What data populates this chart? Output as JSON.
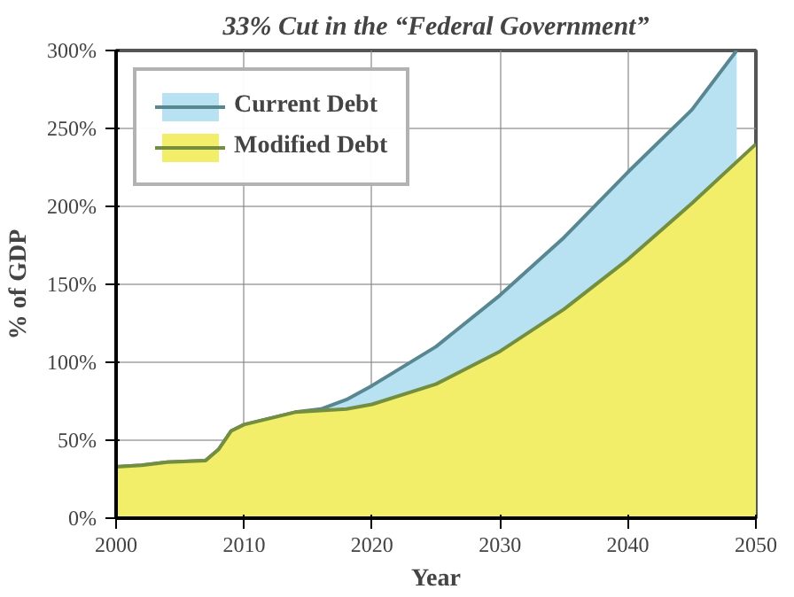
{
  "chart_data": {
    "type": "area",
    "title": "33% Cut in the “Federal Government”",
    "xlabel": "Year",
    "ylabel": "% of GDP",
    "series": [
      {
        "name": "Current Debt",
        "color": "#b8e2f2",
        "x": [
          2000,
          2002,
          2004,
          2007,
          2008,
          2009,
          2010,
          2012,
          2014,
          2016,
          2018,
          2020,
          2025,
          2030,
          2035,
          2040,
          2045,
          2048.5
        ],
        "values": [
          33,
          34,
          36,
          37,
          44,
          56,
          60,
          64,
          68,
          70,
          76,
          85,
          110,
          143,
          180,
          222,
          262,
          300
        ]
      },
      {
        "name": "Modified Debt",
        "color": "#f2ee6a",
        "x": [
          2000,
          2002,
          2004,
          2007,
          2008,
          2009,
          2010,
          2012,
          2014,
          2016,
          2018,
          2020,
          2025,
          2030,
          2035,
          2040,
          2045,
          2050
        ],
        "values": [
          33,
          34,
          36,
          37,
          44,
          56,
          60,
          64,
          68,
          69,
          70,
          73,
          86,
          107,
          134,
          166,
          202,
          240
        ]
      }
    ],
    "xlim": [
      2000,
      2050
    ],
    "xticks": [
      2000,
      2010,
      2020,
      2030,
      2040,
      2050
    ],
    "ylim": [
      0,
      300
    ],
    "yticks": [
      {
        "value": 0,
        "label": "0%"
      },
      {
        "value": 50,
        "label": "50%"
      },
      {
        "value": 100,
        "label": "100%"
      },
      {
        "value": 150,
        "label": "150%"
      },
      {
        "value": 200,
        "label": "200%"
      },
      {
        "value": 250,
        "label": "250%"
      },
      {
        "value": 300,
        "label": "300%"
      }
    ],
    "grid": true,
    "legend": "top left"
  }
}
